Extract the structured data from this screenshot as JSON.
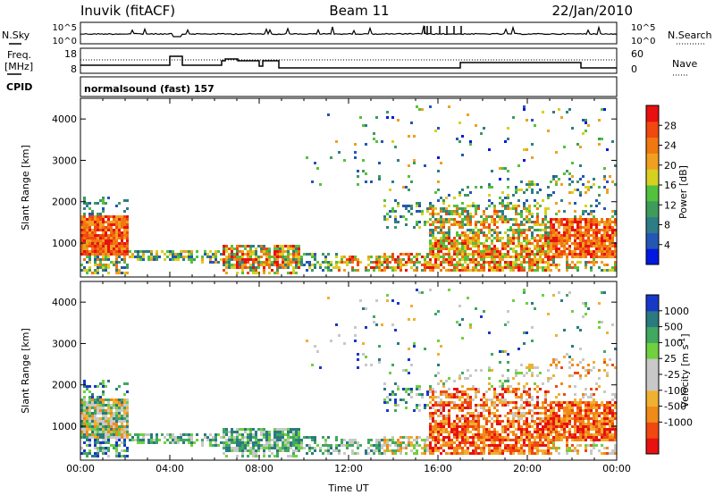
{
  "header": {
    "station": "Inuvik (fitACF)",
    "beam": "Beam 11",
    "date": "22/Jan/2010"
  },
  "left_labels": {
    "nsky": "N.Sky",
    "freq_line1": "Freq.",
    "freq_line2": "[MHz]",
    "cpid": "CPID"
  },
  "right_labels": {
    "nsearch": "N.Search",
    "nave": "Nave"
  },
  "noise_axis": {
    "left_ticks": [
      "10^5",
      "10^0"
    ],
    "right_ticks": [
      "10^5",
      "10^0"
    ]
  },
  "freq_axis": {
    "left_ticks": [
      "18",
      "8"
    ],
    "right_ticks": [
      "60",
      "0"
    ]
  },
  "cpid_text": "normalsound (fast) 157",
  "colors": {
    "power_scale": [
      "#0018e0",
      "#2456b4",
      "#2e7d86",
      "#3f9b5a",
      "#52c23c",
      "#d8d020",
      "#f0a020",
      "#f07810",
      "#f04810",
      "#e81010"
    ],
    "velocity_scale": [
      "#e81010",
      "#f04810",
      "#f08a18",
      "#f0b030",
      "#c8c8c8",
      "#c8c8c8",
      "#70d040",
      "#40a860",
      "#2a7a80",
      "#1838c8"
    ]
  },
  "chart_data": [
    {
      "type": "heatmap",
      "name": "power",
      "ylabel": "Slant Range [km]",
      "xlabel": "",
      "x_ticks": [
        "00:00",
        "04:00",
        "08:00",
        "12:00",
        "16:00",
        "20:00",
        "00:00"
      ],
      "y_ticks": [
        "1000",
        "2000",
        "3000",
        "4000"
      ],
      "xlim_hours": [
        0,
        24
      ],
      "ylim_km": [
        180,
        4500
      ],
      "colorbar": {
        "label": "Power [dB]",
        "ticks": [
          "4",
          "8",
          "12",
          "16",
          "20",
          "24",
          "28"
        ],
        "range": [
          0,
          32
        ]
      }
    },
    {
      "type": "heatmap",
      "name": "velocity",
      "ylabel": "Slant Range [km]",
      "xlabel": "Time UT",
      "x_ticks": [
        "00:00",
        "04:00",
        "08:00",
        "12:00",
        "16:00",
        "20:00",
        "00:00"
      ],
      "y_ticks": [
        "1000",
        "2000",
        "3000",
        "4000"
      ],
      "xlim_hours": [
        0,
        24
      ],
      "ylim_km": [
        180,
        4500
      ],
      "colorbar": {
        "label": "Velocity [m s^-1]",
        "ticks": [
          "1000",
          "500",
          "100",
          "25",
          "-25",
          "-100",
          "-500",
          "-1000"
        ]
      }
    }
  ]
}
